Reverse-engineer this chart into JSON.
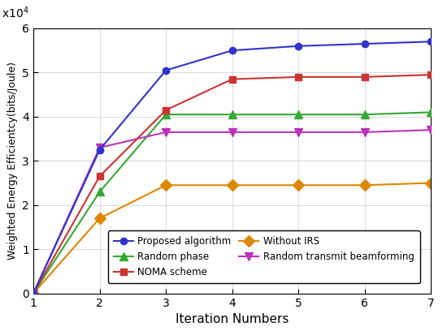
{
  "x": [
    1,
    2,
    3,
    4,
    5,
    6,
    7
  ],
  "proposed": [
    0,
    32500,
    50500,
    55000,
    56000,
    56500,
    57000
  ],
  "noma": [
    0,
    26500,
    41500,
    48500,
    49000,
    49000,
    49500
  ],
  "random_phase": [
    0,
    23000,
    40500,
    40500,
    40500,
    40500,
    41000
  ],
  "without_irs": [
    0,
    17000,
    24500,
    24500,
    24500,
    24500,
    25000
  ],
  "random_beamforming": [
    0,
    33000,
    36500,
    36500,
    36500,
    36500,
    37000
  ],
  "colors": {
    "proposed": "#3333cc",
    "noma": "#cc3333",
    "random_phase": "#33aa33",
    "without_irs": "#dd8800",
    "random_beamforming": "#bb33bb"
  },
  "labels": {
    "proposed": "Proposed algorithm",
    "noma": "NOMA scheme",
    "random_phase": "Random phase",
    "without_irs": "Without IRS",
    "random_beamforming": "Random transmit beamforming"
  },
  "ylabel": "Weighted Energy Efficientcy(bits/Joule)",
  "xlabel": "Iteration Numbers",
  "ylim": [
    0,
    60000
  ],
  "xlim": [
    1,
    7
  ],
  "yticks": [
    0,
    10000,
    20000,
    30000,
    40000,
    50000,
    60000
  ],
  "xticks": [
    1,
    2,
    3,
    4,
    5,
    6,
    7
  ]
}
